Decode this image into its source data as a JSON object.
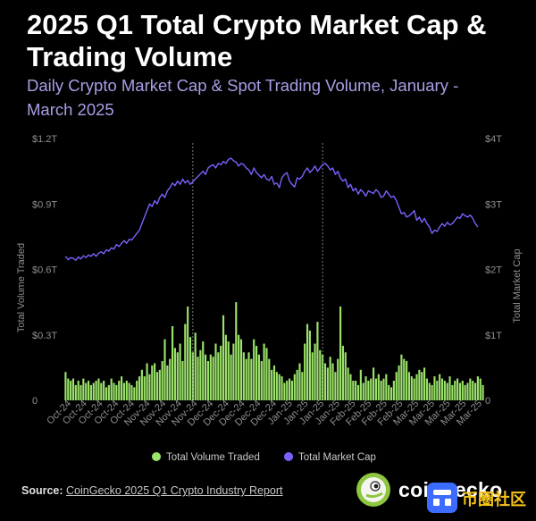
{
  "header": {
    "title": "2025 Q1 Total Crypto Market Cap & Trading Volume",
    "subtitle": "Daily Crypto Market Cap & Spot Trading Volume, January - March 2025"
  },
  "footer": {
    "source_label": "Source:",
    "source_link": "CoinGecko 2025 Q1 Crypto Industry Report",
    "logo_text": "coingecko",
    "logo_icon": "gecko-logo-icon"
  },
  "watermark": {
    "text": "币圈社区"
  },
  "colors": {
    "background": "#000000",
    "volume_bar": "#9be36a",
    "market_cap_line": "#7b61ff",
    "subtitle": "#a99ee6",
    "axis_text": "#8e8e93"
  },
  "chart_data": {
    "type": "bar+line",
    "title": "",
    "x_tick_labels": [
      "Oct-24",
      "Oct-24",
      "Oct-24",
      "Oct-24",
      "Oct-24",
      "Nov-24",
      "Nov-24",
      "Nov-24",
      "Nov-24",
      "Dec-24",
      "Dec-24",
      "Dec-24",
      "Dec-24",
      "Dec-24",
      "Jan-25",
      "Jan-25",
      "Jan-25",
      "Jan-25",
      "Feb-25",
      "Feb-25",
      "Feb-25",
      "Feb-25",
      "Mar-25",
      "Mar-25",
      "Mar-25",
      "Mar-25",
      "Mar-25"
    ],
    "y_left": {
      "label": "Total Volume Traded",
      "ticks": [
        "$1.2T",
        "$0.9T",
        "$0.6T",
        "$0.3T",
        "0"
      ],
      "ylim": [
        0,
        1.2
      ],
      "unit": "T"
    },
    "y_right": {
      "label": "Total Market Cap",
      "ticks": [
        "$4T",
        "$3T",
        "$2T",
        "$1T",
        "0"
      ],
      "ylim": [
        0,
        4
      ],
      "unit": "T"
    },
    "vertical_reference_lines_day_index": [
      50,
      101
    ],
    "grid": false,
    "legend_position": "bottom",
    "series": [
      {
        "name": "Total Volume Traded",
        "type": "bar",
        "axis": "left",
        "values": [
          0.13,
          0.1,
          0.09,
          0.1,
          0.07,
          0.09,
          0.07,
          0.1,
          0.08,
          0.09,
          0.07,
          0.08,
          0.09,
          0.1,
          0.08,
          0.09,
          0.06,
          0.07,
          0.1,
          0.08,
          0.07,
          0.09,
          0.11,
          0.08,
          0.09,
          0.08,
          0.07,
          0.06,
          0.09,
          0.11,
          0.14,
          0.11,
          0.17,
          0.12,
          0.16,
          0.17,
          0.13,
          0.14,
          0.18,
          0.28,
          0.16,
          0.19,
          0.34,
          0.24,
          0.22,
          0.26,
          0.18,
          0.35,
          0.43,
          0.29,
          0.22,
          0.31,
          0.2,
          0.23,
          0.27,
          0.21,
          0.18,
          0.21,
          0.2,
          0.26,
          0.22,
          0.25,
          0.39,
          0.3,
          0.27,
          0.21,
          0.26,
          0.45,
          0.3,
          0.28,
          0.22,
          0.19,
          0.22,
          0.19,
          0.28,
          0.25,
          0.21,
          0.18,
          0.26,
          0.24,
          0.19,
          0.14,
          0.16,
          0.13,
          0.12,
          0.11,
          0.08,
          0.09,
          0.1,
          0.09,
          0.12,
          0.14,
          0.17,
          0.13,
          0.26,
          0.35,
          0.32,
          0.22,
          0.26,
          0.36,
          0.23,
          0.21,
          0.17,
          0.15,
          0.2,
          0.17,
          0.13,
          0.19,
          0.43,
          0.25,
          0.22,
          0.15,
          0.12,
          0.09,
          0.09,
          0.07,
          0.14,
          0.08,
          0.11,
          0.09,
          0.1,
          0.15,
          0.1,
          0.12,
          0.09,
          0.1,
          0.12,
          0.07,
          0.06,
          0.09,
          0.13,
          0.16,
          0.21,
          0.19,
          0.18,
          0.13,
          0.11,
          0.1,
          0.12,
          0.14,
          0.13,
          0.15,
          0.1,
          0.08,
          0.07,
          0.11,
          0.09,
          0.12,
          0.1,
          0.09,
          0.08,
          0.11,
          0.07,
          0.09,
          0.1,
          0.08,
          0.09,
          0.07,
          0.08,
          0.1,
          0.09,
          0.08,
          0.11,
          0.1,
          0.07
        ]
      },
      {
        "name": "Total Market Cap",
        "type": "line",
        "axis": "right",
        "values": [
          2.2,
          2.15,
          2.18,
          2.17,
          2.14,
          2.19,
          2.16,
          2.21,
          2.18,
          2.22,
          2.2,
          2.24,
          2.2,
          2.25,
          2.27,
          2.24,
          2.3,
          2.28,
          2.33,
          2.31,
          2.38,
          2.35,
          2.4,
          2.44,
          2.4,
          2.46,
          2.45,
          2.5,
          2.55,
          2.6,
          2.7,
          2.8,
          2.9,
          3.0,
          2.96,
          3.05,
          3.0,
          3.1,
          3.15,
          3.1,
          3.2,
          3.25,
          3.32,
          3.28,
          3.35,
          3.3,
          3.38,
          3.32,
          3.36,
          3.3,
          3.34,
          3.38,
          3.42,
          3.46,
          3.5,
          3.45,
          3.55,
          3.58,
          3.6,
          3.55,
          3.62,
          3.6,
          3.65,
          3.62,
          3.68,
          3.7,
          3.66,
          3.64,
          3.58,
          3.62,
          3.6,
          3.55,
          3.52,
          3.45,
          3.55,
          3.48,
          3.44,
          3.4,
          3.45,
          3.38,
          3.36,
          3.42,
          3.3,
          3.32,
          3.25,
          3.4,
          3.45,
          3.48,
          3.35,
          3.3,
          3.26,
          3.4,
          3.38,
          3.42,
          3.5,
          3.55,
          3.48,
          3.52,
          3.58,
          3.5,
          3.55,
          3.6,
          3.62,
          3.58,
          3.52,
          3.55,
          3.45,
          3.5,
          3.4,
          3.35,
          3.38,
          3.25,
          3.3,
          3.2,
          3.24,
          3.15,
          3.22,
          3.18,
          3.12,
          3.2,
          3.18,
          3.16,
          3.22,
          3.18,
          3.1,
          3.12,
          3.2,
          3.15,
          3.1,
          3.12,
          3.05,
          2.95,
          2.85,
          2.87,
          2.8,
          2.82,
          2.85,
          2.9,
          2.75,
          2.8,
          2.72,
          2.78,
          2.7,
          2.65,
          2.55,
          2.6,
          2.58,
          2.65,
          2.7,
          2.66,
          2.72,
          2.68,
          2.7,
          2.75,
          2.8,
          2.78,
          2.85,
          2.82,
          2.8,
          2.83,
          2.78,
          2.7,
          2.65
        ]
      }
    ]
  }
}
